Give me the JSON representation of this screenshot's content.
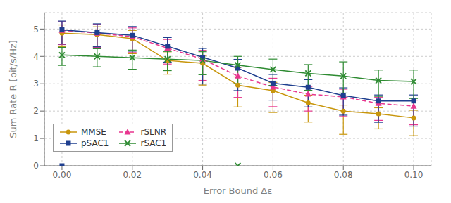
{
  "chart_data": {
    "type": "line",
    "xlabel": "Error Bound Δε",
    "ylabel": "Sum Rate R [bit/s/Hz]",
    "x": [
      0.0,
      0.01,
      0.02,
      0.03,
      0.04,
      0.05,
      0.06,
      0.07,
      0.08,
      0.09,
      0.1
    ],
    "series": [
      {
        "name": "MMSE",
        "color": "#C8960C",
        "marker": "circle",
        "line_style": "solid",
        "values": [
          4.85,
          4.8,
          4.65,
          3.85,
          3.75,
          2.95,
          2.75,
          2.3,
          2.0,
          1.9,
          1.75
        ],
        "error_low": [
          0.5,
          0.45,
          0.55,
          0.5,
          0.8,
          0.8,
          0.8,
          0.7,
          0.85,
          0.55,
          0.65
        ],
        "error_high": [
          0.3,
          0.28,
          0.3,
          0.28,
          0.28,
          0.3,
          0.3,
          0.28,
          0.22,
          0.22,
          0.28
        ]
      },
      {
        "name": "rSLNR",
        "color": "#E8368F",
        "marker": "triangle",
        "line_style": "dashed",
        "values": [
          4.95,
          4.85,
          4.72,
          4.3,
          3.9,
          3.28,
          2.88,
          2.62,
          2.52,
          2.28,
          2.18
        ],
        "error_low": [
          0.52,
          0.52,
          0.58,
          0.58,
          0.78,
          0.78,
          0.72,
          0.62,
          0.72,
          0.62,
          0.68
        ],
        "error_high": [
          0.32,
          0.32,
          0.32,
          0.32,
          0.32,
          0.32,
          0.32,
          0.28,
          0.28,
          0.22,
          0.22
        ]
      },
      {
        "name": "pSAC1",
        "color": "#1F3F8F",
        "marker": "square",
        "line_style": "solid",
        "values": [
          4.97,
          4.87,
          4.77,
          4.37,
          3.97,
          3.57,
          3.02,
          2.87,
          2.57,
          2.37,
          2.37
        ],
        "error_low": [
          0.52,
          0.52,
          0.58,
          0.58,
          0.98,
          0.82,
          0.62,
          0.72,
          0.72,
          0.78,
          0.92
        ],
        "error_high": [
          0.32,
          0.32,
          0.32,
          0.32,
          0.32,
          0.32,
          0.32,
          0.28,
          0.28,
          0.22,
          0.22
        ]
      },
      {
        "name": "rSAC1",
        "color": "#2E8B32",
        "marker": "x",
        "line_style": "solid",
        "values": [
          4.05,
          4.0,
          3.95,
          3.9,
          3.85,
          3.68,
          3.52,
          3.38,
          3.28,
          3.12,
          3.08
        ],
        "error_low": [
          0.38,
          0.38,
          0.42,
          0.42,
          0.52,
          0.68,
          0.58,
          0.62,
          0.62,
          0.58,
          0.62
        ],
        "error_high": [
          0.28,
          0.28,
          0.28,
          0.28,
          0.32,
          0.32,
          0.38,
          0.32,
          0.52,
          0.38,
          0.42
        ]
      },
      {
        "type": "scatter",
        "color": "#1F3F8F",
        "marker": "square",
        "x": [
          0.0
        ],
        "values": [
          0.0
        ]
      },
      {
        "type": "scatter",
        "color": "#2E8B32",
        "marker": "x",
        "x": [
          0.05
        ],
        "values": [
          0.0
        ]
      }
    ],
    "xlim": [
      -0.005,
      0.105
    ],
    "xticks": [
      {
        "value": 0,
        "label": "0.00"
      },
      0.02,
      0.04,
      0.06,
      0.08,
      {
        "value": 0.1,
        "label": "0.10"
      }
    ],
    "ylim": [
      0,
      5.6
    ],
    "yticks": [
      0,
      1,
      2,
      3,
      4,
      5
    ],
    "grid": true,
    "legend": "lower left"
  }
}
